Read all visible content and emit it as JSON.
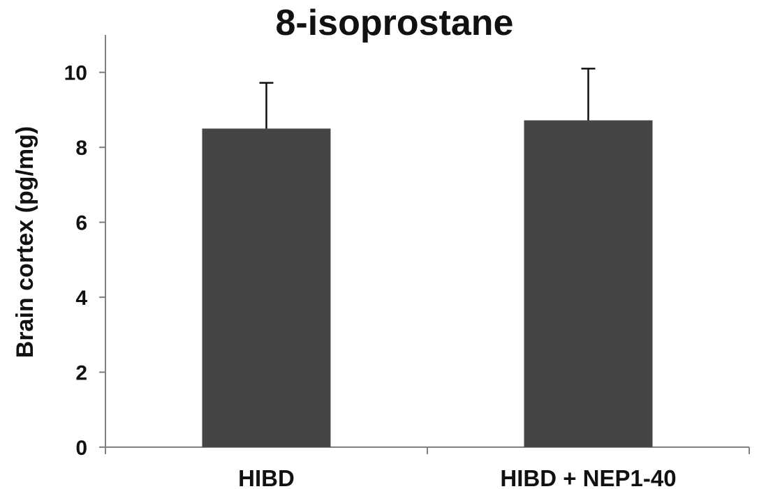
{
  "chart_data": {
    "type": "bar",
    "title": "8-isoprostane",
    "xlabel": "",
    "ylabel": "Brain cortex (pg/mg)",
    "categories": [
      "HIBD",
      "HIBD + NEP1-40"
    ],
    "values": [
      8.5,
      8.72
    ],
    "errors": [
      1.22,
      1.38
    ],
    "ylim": [
      0,
      11
    ],
    "yticks": [
      0,
      2,
      4,
      6,
      8,
      10
    ],
    "grid": false,
    "legend": "none",
    "colors": {
      "bar": "#454545",
      "axis": "#7f7f7f",
      "error_bar": "#111111"
    }
  }
}
